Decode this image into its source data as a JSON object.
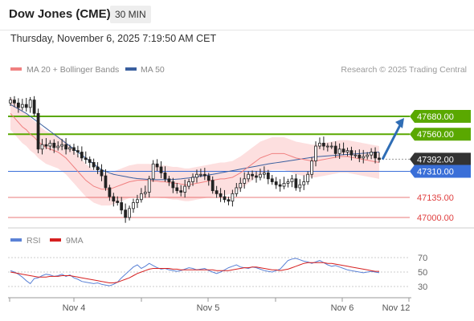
{
  "header": {
    "title": "Dow Jones (CME)",
    "interval": "30 MIN",
    "datetime": "Thursday, November 6, 2025 7:19:50 AM CET"
  },
  "legend": {
    "ma20_label": "MA 20 + Bollinger Bands",
    "ma50_label": "MA 50",
    "copyright": "Research © 2025 Trading Central",
    "rsi_label": "RSI",
    "rsi_ma_label": "9MA"
  },
  "colors": {
    "ma20": "#f08080",
    "ma50": "#3a5f9f",
    "bands": "#fcd4d4",
    "resistance": "#5aa800",
    "support_blue": "#3a6fd8",
    "support_red": "#e04040",
    "current": "#333333",
    "arrow": "#2f6db5",
    "candle": "#222222",
    "rsi": "#5b82d6",
    "rsi_ma": "#d62020"
  },
  "chart_data": [
    {
      "type": "candlestick",
      "x_ticks": [
        "Nov 4",
        "Nov 5",
        "Nov 6",
        "Nov 12"
      ],
      "levels": [
        {
          "value": 47680,
          "label": "47680.00",
          "kind": "resistance"
        },
        {
          "value": 47560,
          "label": "47560.00",
          "kind": "resistance"
        },
        {
          "value": 47392,
          "label": "47392.00",
          "kind": "current"
        },
        {
          "value": 47310,
          "label": "47310.00",
          "kind": "support-blue"
        },
        {
          "value": 47135,
          "label": "47135.00",
          "kind": "support-red"
        },
        {
          "value": 47000,
          "label": "47000.00",
          "kind": "support-red"
        }
      ],
      "close": [
        47790,
        47770,
        47740,
        47760,
        47740,
        47790,
        47700,
        47460,
        47490,
        47480,
        47500,
        47470,
        47480,
        47490,
        47460,
        47470,
        47450,
        47440,
        47400,
        47390,
        47370,
        47340,
        47320,
        47280,
        47200,
        47140,
        47110,
        47100,
        47050,
        47000,
        47060,
        47100,
        47120,
        47160,
        47170,
        47260,
        47360,
        47340,
        47300,
        47260,
        47240,
        47200,
        47180,
        47170,
        47210,
        47240,
        47270,
        47290,
        47290,
        47280,
        47250,
        47180,
        47160,
        47140,
        47120,
        47110,
        47160,
        47200,
        47230,
        47260,
        47290,
        47280,
        47270,
        47290,
        47300,
        47260,
        47240,
        47220,
        47210,
        47230,
        47240,
        47260,
        47200,
        47220,
        47240,
        47290,
        47380,
        47480,
        47500,
        47480,
        47480,
        47480,
        47430,
        47460,
        47440,
        47450,
        47420,
        47420,
        47400,
        47410,
        47420,
        47440,
        47400,
        47390
      ],
      "ma20": [
        47700,
        47670,
        47640,
        47610,
        47590,
        47560,
        47540,
        47510,
        47490,
        47470,
        47460,
        47450,
        47440,
        47420,
        47400,
        47370,
        47340,
        47310,
        47280,
        47250,
        47230,
        47210,
        47200,
        47190,
        47190,
        47190,
        47200,
        47210,
        47220,
        47230,
        47240,
        47245,
        47250,
        47250,
        47250,
        47250,
        47245,
        47245,
        47240,
        47240,
        47235,
        47230,
        47230,
        47225,
        47220,
        47220,
        47225,
        47230,
        47235,
        47240,
        47245,
        47250,
        47255,
        47260,
        47260,
        47265,
        47270,
        47285,
        47300,
        47320,
        47340,
        47360,
        47380,
        47400,
        47410,
        47420,
        47430,
        47430,
        47430,
        47430,
        47420,
        47410,
        47400,
        47395,
        47390,
        47385,
        47380,
        47380,
        47385,
        47390,
        47395,
        47400,
        47405,
        47410,
        47410,
        47410,
        47405,
        47400,
        47395,
        47390,
        47385,
        47380,
        47375,
        47370
      ],
      "ma50": [
        47760,
        47745,
        47730,
        47715,
        47700,
        47680,
        47660,
        47640,
        47620,
        47600,
        47580,
        47560,
        47540,
        47520,
        47500,
        47480,
        47460,
        47440,
        47420,
        47400,
        47380,
        47360,
        47340,
        47320,
        47310,
        47300,
        47290,
        47285,
        47280,
        47275,
        47270,
        47265,
        47262,
        47260,
        47258,
        47256,
        47255,
        47254,
        47254,
        47254,
        47255,
        47256,
        47258,
        47260,
        47263,
        47266,
        47270,
        47274,
        47278,
        47282,
        47286,
        47290,
        47295,
        47300,
        47305,
        47310,
        47315,
        47320,
        47325,
        47330,
        47335,
        47340,
        47345,
        47350,
        47355,
        47360,
        47364,
        47368,
        47372,
        47376,
        47380,
        47384,
        47388,
        47392,
        47396,
        47400,
        47404,
        47408,
        47410,
        47412,
        47414,
        47416,
        47418,
        47420,
        47422,
        47424,
        47426,
        47428,
        47430,
        47432,
        47434,
        47436,
        47438,
        47440
      ],
      "bb_width": 110,
      "rsi": [
        52,
        50,
        47,
        43,
        38,
        34,
        41,
        42,
        45,
        47,
        46,
        44,
        45,
        47,
        44,
        46,
        42,
        40,
        37,
        36,
        35,
        34,
        35,
        33,
        32,
        31,
        33,
        36,
        42,
        47,
        52,
        57,
        60,
        55,
        58,
        62,
        59,
        56,
        54,
        55,
        53,
        52,
        51,
        52,
        54,
        56,
        55,
        53,
        54,
        55,
        52,
        50,
        48,
        50,
        53,
        56,
        58,
        60,
        57,
        56,
        55,
        57,
        56,
        54,
        52,
        51,
        50,
        52,
        54,
        60,
        66,
        68,
        69,
        67,
        65,
        64,
        62,
        64,
        66,
        63,
        60,
        58,
        59,
        57,
        55,
        53,
        52,
        51,
        50,
        49,
        50,
        51,
        50,
        49
      ],
      "rsi_ma": [
        50,
        49,
        48,
        47,
        46,
        45,
        44,
        43,
        43,
        43,
        44,
        44,
        44,
        45,
        45,
        45,
        44,
        43,
        42,
        41,
        40,
        39,
        38,
        37,
        36,
        35,
        35,
        36,
        38,
        40,
        42,
        45,
        48,
        50,
        52,
        54,
        55,
        55,
        55,
        55,
        55,
        54,
        54,
        53,
        53,
        53,
        53,
        53,
        53,
        53,
        53,
        53,
        52,
        52,
        52,
        52,
        53,
        54,
        55,
        56,
        56,
        57,
        57,
        56,
        55,
        54,
        53,
        53,
        52,
        53,
        54,
        56,
        58,
        60,
        62,
        63,
        63,
        63,
        63,
        63,
        62,
        62,
        61,
        60,
        59,
        58,
        57,
        56,
        55,
        54,
        53,
        52,
        51,
        51
      ],
      "rsi_ticks": [
        70,
        50,
        30
      ]
    }
  ]
}
